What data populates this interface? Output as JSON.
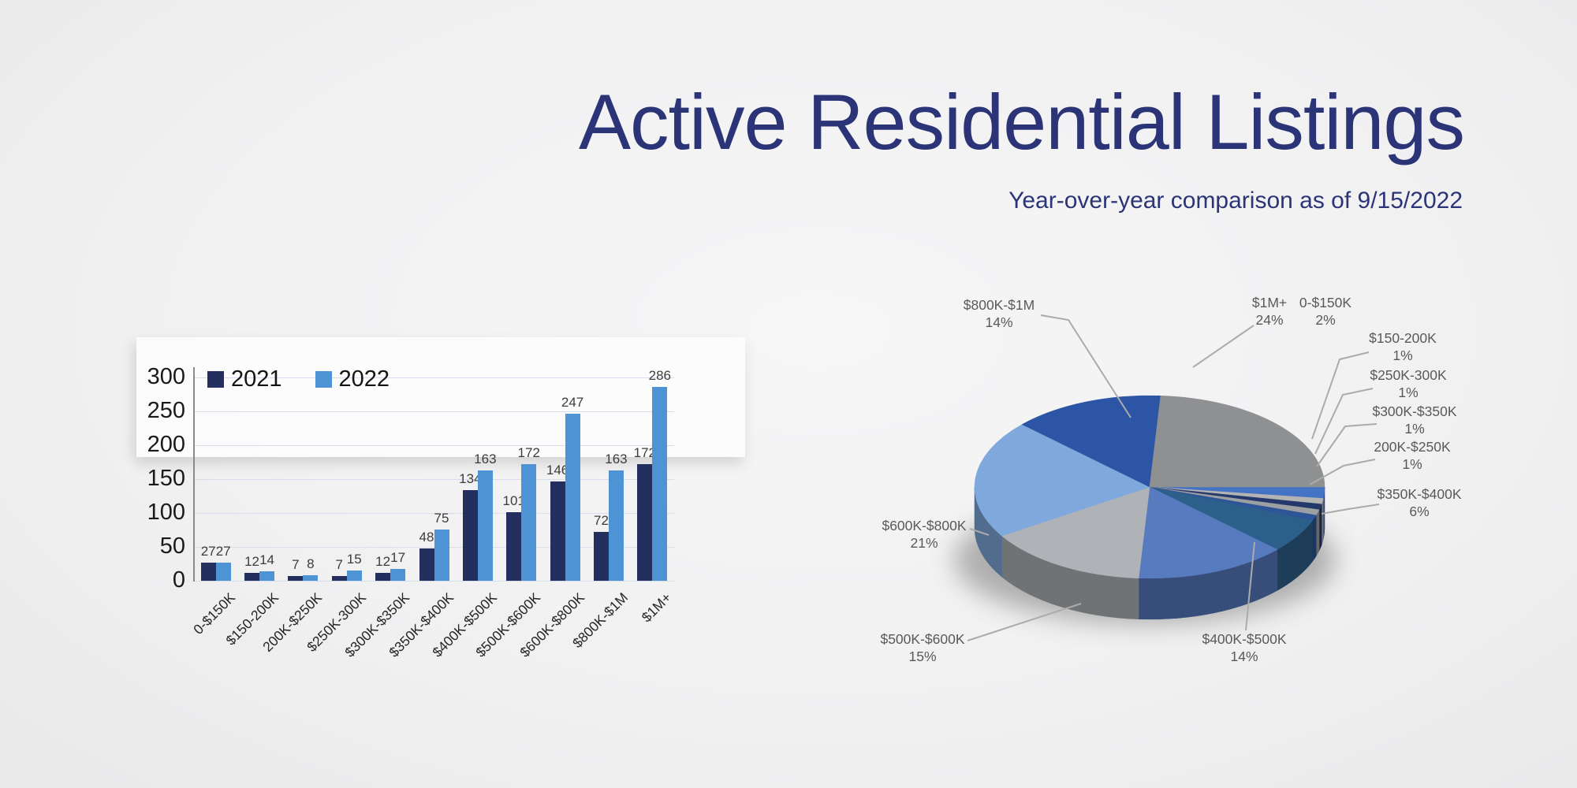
{
  "header": {
    "title": "Active Residential Listings",
    "subtitle": "Year-over-year comparison as of 9/15/2022"
  },
  "colors": {
    "title_text": "#2A3477",
    "series_2021": "#23305F",
    "series_2022": "#4E94D4",
    "gridline": "#D6DDEB",
    "leader_line": "#ABABAB",
    "pie_label_text": "#595959"
  },
  "chart_data": [
    {
      "type": "bar",
      "title": "",
      "categories": [
        "0-$150K",
        "$150-200K",
        "200K-$250K",
        "$250K-300K",
        "$300K-$350K",
        "$350K-$400K",
        "$400K-$500K",
        "$500K-$600K",
        "$600K-$800K",
        "$800K-$1M",
        "$1M+"
      ],
      "series": [
        {
          "name": "2021",
          "color": "#23305F",
          "values": [
            27,
            12,
            7,
            7,
            12,
            48,
            134,
            101,
            146,
            72,
            172
          ]
        },
        {
          "name": "2022",
          "color": "#4E94D4",
          "values": [
            27,
            14,
            8,
            15,
            17,
            75,
            163,
            172,
            247,
            163,
            286
          ]
        }
      ],
      "xlabel": "",
      "ylabel": "",
      "ylim": [
        0,
        300
      ],
      "ytick_interval": 50,
      "grid": true,
      "legend_position": "top-left"
    },
    {
      "type": "pie",
      "effect": "3d",
      "labels": [
        "0-$150K",
        "$150-200K",
        "200K-$250K",
        "$250K-300K",
        "$300K-$350K",
        "$350K-$400K",
        "$400K-$500K",
        "$500K-$600K",
        "$600K-$800K",
        "$800K-$1M",
        "$1M+"
      ],
      "values": [
        2,
        1,
        1,
        1,
        1,
        6,
        14,
        15,
        21,
        14,
        24
      ],
      "percent_labels": [
        "2%",
        "1%",
        "1%",
        "1%",
        "1%",
        "6%",
        "14%",
        "15%",
        "21%",
        "14%",
        "24%"
      ],
      "colors": [
        "#4472C4",
        "#B3B3B3",
        "#24386B",
        "#9DA0A3",
        "#2E5597",
        "#2D5F8B",
        "#587ABF",
        "#AFB3B7",
        "#7FA9DC",
        "#2C55A5",
        "#8E9092"
      ]
    }
  ]
}
